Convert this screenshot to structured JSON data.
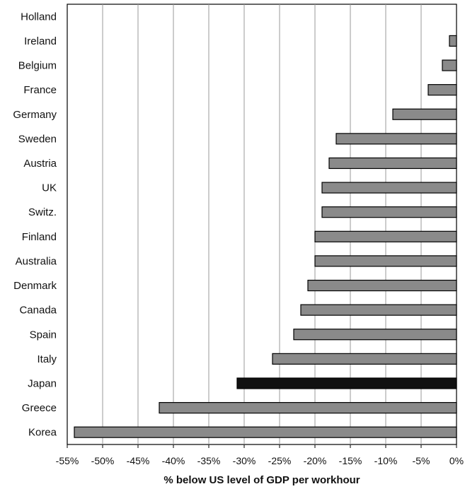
{
  "chart_data": {
    "type": "bar",
    "orientation": "horizontal",
    "categories": [
      "Holland",
      "Ireland",
      "Belgium",
      "France",
      "Germany",
      "Sweden",
      "Austria",
      "UK",
      "Switz.",
      "Finland",
      "Australia",
      "Denmark",
      "Canada",
      "Spain",
      "Italy",
      "Japan",
      "Greece",
      "Korea"
    ],
    "values": [
      0,
      -1,
      -2,
      -4,
      -9,
      -17,
      -18,
      -19,
      -19,
      -20,
      -20,
      -21,
      -22,
      -23,
      -26,
      -31,
      -42,
      -54
    ],
    "highlight_category": "Japan",
    "xlabel": "% below US level of GDP per workhour",
    "ylabel": "",
    "xlim": [
      -55,
      0
    ],
    "x_ticks": [
      -55,
      -50,
      -45,
      -40,
      -35,
      -30,
      -25,
      -20,
      -15,
      -10,
      -5,
      0
    ],
    "x_tick_labels": [
      "-55%",
      "-50%",
      "-45%",
      "-40%",
      "-35%",
      "-30%",
      "-25%",
      "-20%",
      "-15%",
      "-10%",
      "-5%",
      "0%"
    ],
    "grid": "vertical",
    "colors": {
      "bar": "#8a8a8a",
      "highlight_bar": "#111111",
      "bar_outline": "#000000",
      "grid": "#9a9a9a",
      "axis": "#000000"
    }
  }
}
